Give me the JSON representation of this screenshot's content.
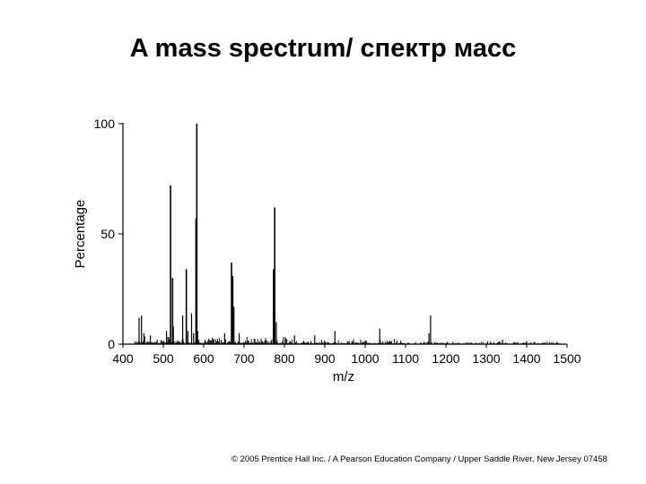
{
  "slide": {
    "title": "A mass spectrum/ спектр масс",
    "copyright": "© 2005 Prentice Hall Inc. / A Pearson Education Company / Upper Saddle River, New Jersey 07458"
  },
  "chart_data": {
    "type": "bar",
    "title": "",
    "xlabel": "m/z",
    "ylabel": "Percentage",
    "xlim": [
      400,
      1500
    ],
    "ylim": [
      0,
      100
    ],
    "x_ticks": [
      400,
      500,
      600,
      700,
      800,
      900,
      1000,
      1100,
      1200,
      1300,
      1400,
      1500
    ],
    "y_ticks": [
      0,
      50,
      100
    ],
    "grid": false,
    "peaks": [
      {
        "mz": 440,
        "y": 12
      },
      {
        "mz": 446,
        "y": 13
      },
      {
        "mz": 452,
        "y": 5
      },
      {
        "mz": 468,
        "y": 4
      },
      {
        "mz": 508,
        "y": 6
      },
      {
        "mz": 518,
        "y": 72
      },
      {
        "mz": 523,
        "y": 30
      },
      {
        "mz": 525,
        "y": 8
      },
      {
        "mz": 548,
        "y": 13
      },
      {
        "mz": 557,
        "y": 34
      },
      {
        "mz": 561,
        "y": 6
      },
      {
        "mz": 570,
        "y": 14
      },
      {
        "mz": 575,
        "y": 5
      },
      {
        "mz": 581,
        "y": 57
      },
      {
        "mz": 583,
        "y": 100
      },
      {
        "mz": 585,
        "y": 6
      },
      {
        "mz": 652,
        "y": 5
      },
      {
        "mz": 669,
        "y": 37
      },
      {
        "mz": 672,
        "y": 31
      },
      {
        "mz": 675,
        "y": 17
      },
      {
        "mz": 688,
        "y": 5
      },
      {
        "mz": 773,
        "y": 34
      },
      {
        "mz": 776,
        "y": 62
      },
      {
        "mz": 780,
        "y": 10
      },
      {
        "mz": 825,
        "y": 4
      },
      {
        "mz": 875,
        "y": 4
      },
      {
        "mz": 925,
        "y": 6
      },
      {
        "mz": 1036,
        "y": 7
      },
      {
        "mz": 1158,
        "y": 5
      },
      {
        "mz": 1162,
        "y": 13
      },
      {
        "mz": 1340,
        "y": 2
      }
    ]
  }
}
